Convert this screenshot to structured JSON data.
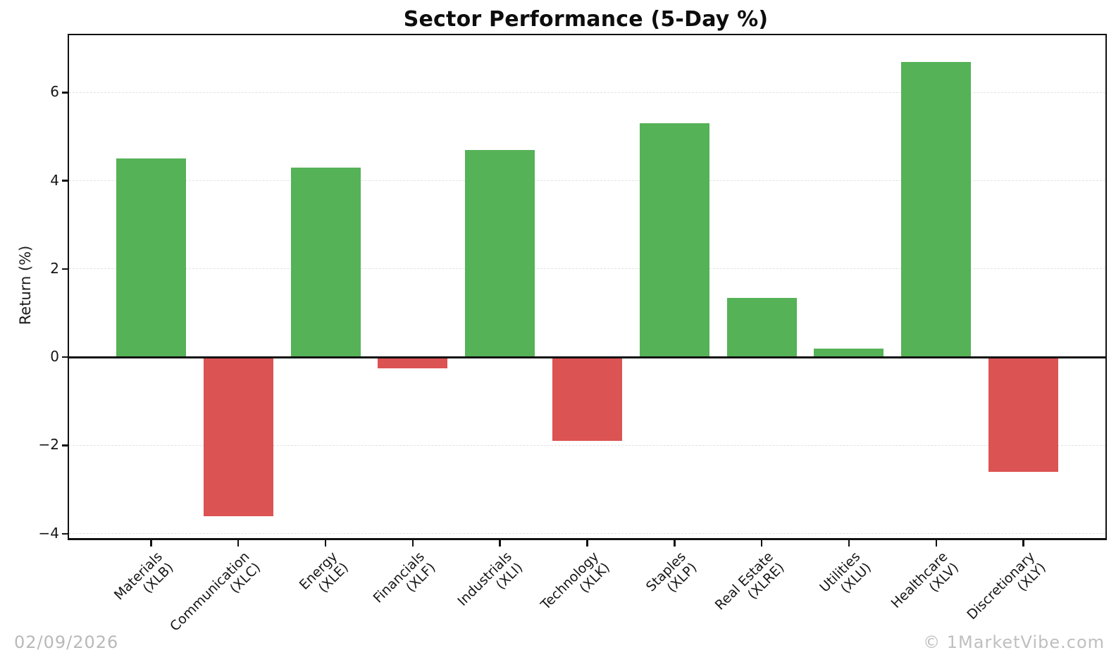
{
  "title": "Sector Performance (5-Day %)",
  "ylabel": "Return (%)",
  "footer": {
    "date": "02/09/2026",
    "attribution": "© 1MarketVibe.com"
  },
  "chart_data": {
    "type": "bar",
    "title": "Sector Performance (5-Day %)",
    "xlabel": "",
    "ylabel": "Return (%)",
    "categories": [
      "Materials\n(XLB)",
      "Communication\n(XLC)",
      "Energy\n(XLE)",
      "Financials\n(XLF)",
      "Industrials\n(XLI)",
      "Technology\n(XLK)",
      "Staples\n(XLP)",
      "Real Estate\n(XLRE)",
      "Utilities\n(XLU)",
      "Healthcare\n(XLV)",
      "Discretionary\n(XLY)"
    ],
    "values": [
      4.5,
      -3.6,
      4.3,
      -0.25,
      4.7,
      -1.9,
      5.3,
      1.35,
      0.2,
      6.7,
      -2.6
    ],
    "yticks": [
      -4,
      -2,
      0,
      2,
      4,
      6
    ],
    "ylim": [
      -4.1,
      7.3
    ],
    "grid": "horizontal-dashed",
    "legend": "none",
    "positive_color": "#55b257",
    "negative_color": "#dc5353",
    "gridline_color": "#e2e2e2",
    "axis_color": "#111111"
  }
}
